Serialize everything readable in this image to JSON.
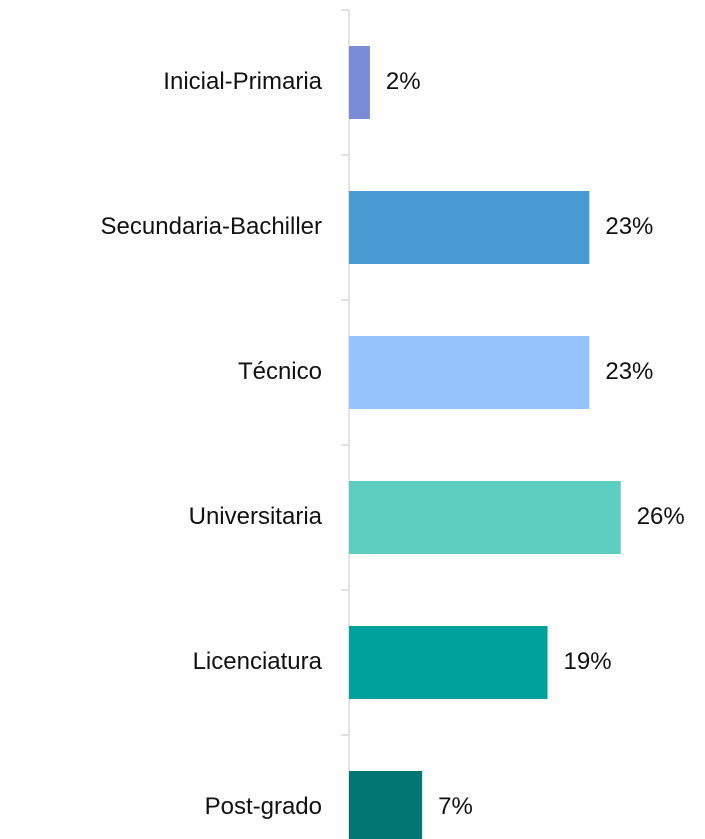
{
  "chart_data": {
    "type": "barh",
    "categories": [
      "Inicial-Primaria",
      "Secundaria-Bachiller",
      "Técnico",
      "Universitaria",
      "Licenciatura",
      "Post-grado"
    ],
    "values": [
      2,
      23,
      23,
      26,
      19,
      7
    ],
    "value_labels": [
      "2%",
      "23%",
      "23%",
      "26%",
      "19%",
      "7%"
    ],
    "colors": [
      "#7a8cd9",
      "#4a9bd3",
      "#97c3fc",
      "#5ccdbf",
      "#00a19c",
      "#027673"
    ]
  }
}
